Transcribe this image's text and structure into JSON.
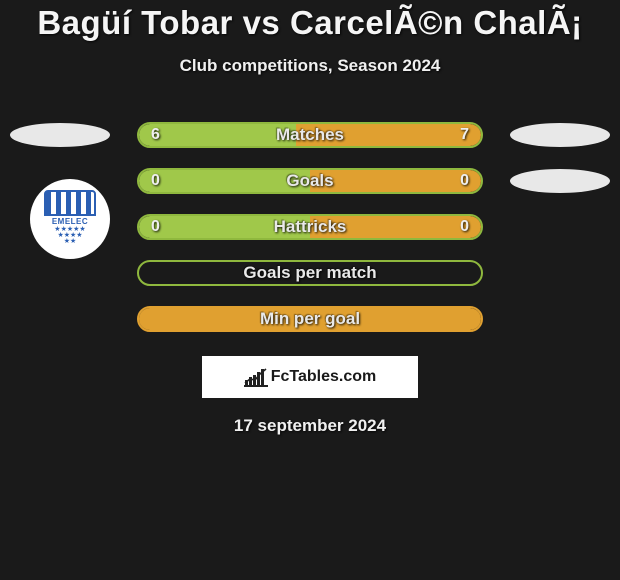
{
  "title": "Bagüí Tobar vs CarcelÃ©n ChalÃ¡",
  "subtitle": "Club competitions, Season 2024",
  "date": "17 september 2024",
  "footer_brand": "FcTables.com",
  "club_badge_text": "EMELEC",
  "colors": {
    "background": "#1a1a1a",
    "left_fill": "#a0c84a",
    "border_green": "#8fb83e",
    "right_fill": "#e0a030",
    "accent_dark": "#2e2e2e"
  },
  "stats": [
    {
      "label": "Matches",
      "left_value": "6",
      "right_value": "7",
      "left_pct": 46,
      "right_pct": 54,
      "show_left_oval": true,
      "show_right_oval": true,
      "border_color": "#8fb83e"
    },
    {
      "label": "Goals",
      "left_value": "0",
      "right_value": "0",
      "left_pct": 50,
      "right_pct": 50,
      "show_left_oval": false,
      "show_right_oval": true,
      "border_color": "#8fb83e"
    },
    {
      "label": "Hattricks",
      "left_value": "0",
      "right_value": "0",
      "left_pct": 50,
      "right_pct": 50,
      "show_left_oval": false,
      "show_right_oval": false,
      "border_color": "#8fb83e"
    },
    {
      "label": "Goals per match",
      "left_value": "",
      "right_value": "",
      "left_pct": 0,
      "right_pct": 0,
      "show_left_oval": false,
      "show_right_oval": false,
      "border_color": "#8fb83e"
    },
    {
      "label": "Min per goal",
      "left_value": "",
      "right_value": "",
      "left_pct": 0,
      "right_pct": 100,
      "show_left_oval": false,
      "show_right_oval": false,
      "border_color": "#e0a030"
    }
  ]
}
